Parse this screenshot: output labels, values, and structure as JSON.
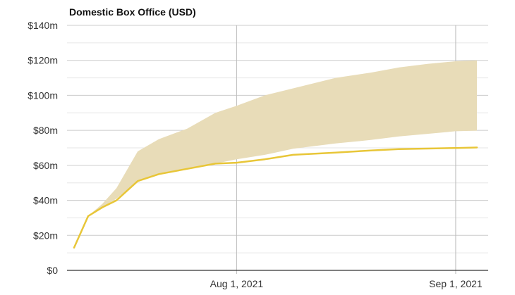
{
  "chart_data": {
    "type": "line",
    "title": "Domestic Box Office (USD)",
    "xlabel": "",
    "ylabel": "",
    "x_tick_labels": [
      "Aug 1, 2021",
      "Sep 1, 2021"
    ],
    "x_tick_dates": [
      "2021-08-01",
      "2021-09-01"
    ],
    "y_tick_labels": [
      "$0",
      "$20m",
      "$40m",
      "$60m",
      "$80m",
      "$100m",
      "$120m",
      "$140m"
    ],
    "ylim": [
      0,
      140
    ],
    "xlim": [
      "2021-07-09",
      "2021-09-05"
    ],
    "grid": true,
    "legend": "none",
    "colors": {
      "line": "#e8c638",
      "band": "#e8dcb8",
      "major_grid": "#cccccc",
      "minor_grid": "#e6e6e6",
      "baseline": "#333333"
    },
    "series": [
      {
        "type": "line",
        "x": [
          "2021-07-09",
          "2021-07-11",
          "2021-07-13",
          "2021-07-15",
          "2021-07-18",
          "2021-07-21",
          "2021-07-25",
          "2021-07-29",
          "2021-08-01",
          "2021-08-05",
          "2021-08-09",
          "2021-08-15",
          "2021-08-20",
          "2021-08-24",
          "2021-08-28",
          "2021-09-01",
          "2021-09-04"
        ],
        "values": [
          13,
          31,
          36,
          40,
          51,
          55,
          58,
          61,
          61.5,
          63.5,
          66,
          67.3,
          68.5,
          69.3,
          69.6,
          69.9,
          70.2
        ]
      },
      {
        "type": "range",
        "x": [
          "2021-07-11",
          "2021-07-13",
          "2021-07-15",
          "2021-07-18",
          "2021-07-21",
          "2021-07-25",
          "2021-07-29",
          "2021-08-01",
          "2021-08-05",
          "2021-08-09",
          "2021-08-15",
          "2021-08-20",
          "2021-08-24",
          "2021-08-28",
          "2021-09-01",
          "2021-09-04"
        ],
        "low": [
          31,
          36,
          41,
          51,
          55,
          58,
          61,
          63.5,
          66,
          69.5,
          72.5,
          74.5,
          76.5,
          78,
          79.5,
          79.8
        ],
        "high": [
          31,
          38,
          47,
          68,
          75,
          81,
          90,
          94,
          100,
          104,
          110,
          113,
          116,
          118,
          119.5,
          120
        ]
      }
    ]
  }
}
